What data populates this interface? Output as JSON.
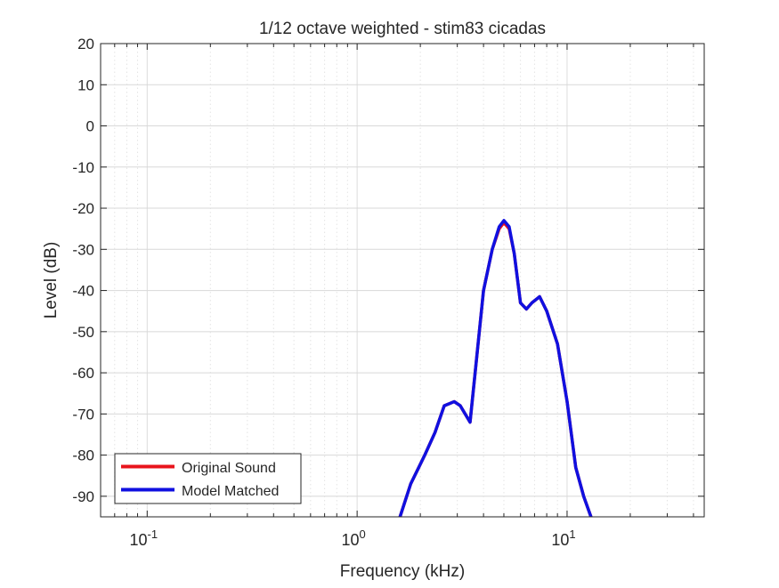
{
  "chart_data": {
    "type": "line",
    "title": "1/12 octave weighted - stim83 cicadas",
    "xlabel": "Frequency (kHz)",
    "ylabel": "Level (dB)",
    "xscale": "log",
    "xlim": [
      0.06,
      45
    ],
    "ylim": [
      -95,
      20
    ],
    "yticks": [
      20,
      10,
      0,
      -10,
      -20,
      -30,
      -40,
      -50,
      -60,
      -70,
      -80,
      -90
    ],
    "xticks": [
      {
        "value": 0.1,
        "base": "10",
        "exp": "-1"
      },
      {
        "value": 1,
        "base": "10",
        "exp": "0"
      },
      {
        "value": 10,
        "base": "10",
        "exp": "1"
      }
    ],
    "grid": true,
    "legend_position": "bottom-left",
    "colors": {
      "original": "#e8141c",
      "model": "#1010e0",
      "grid": "#d8d8d8",
      "axis": "#262626"
    },
    "series": [
      {
        "name": "Original Sound",
        "color": "#e8141c",
        "x": [
          1.6,
          1.8,
          2.1,
          2.35,
          2.6,
          2.9,
          3.1,
          3.45,
          3.7,
          4.0,
          4.4,
          4.75,
          5.0,
          5.3,
          5.6,
          6.0,
          6.4,
          6.8,
          7.4,
          8.0,
          9.0,
          10.0,
          11.0,
          12.0,
          13.0
        ],
        "values": [
          -95,
          -87,
          -80,
          -74.5,
          -68,
          -67,
          -68,
          -72,
          -57,
          -40,
          -30,
          -25,
          -23.5,
          -25,
          -31,
          -43,
          -44.5,
          -43,
          -41.5,
          -45,
          -53,
          -67,
          -83,
          -90,
          -95
        ]
      },
      {
        "name": "Model Matched",
        "color": "#1010e0",
        "x": [
          1.6,
          1.8,
          2.1,
          2.35,
          2.6,
          2.9,
          3.1,
          3.45,
          3.7,
          4.0,
          4.4,
          4.75,
          5.0,
          5.3,
          5.6,
          6.0,
          6.4,
          6.8,
          7.4,
          8.0,
          9.0,
          10.0,
          11.0,
          12.0,
          13.0
        ],
        "values": [
          -95,
          -87,
          -80,
          -74.5,
          -68,
          -67,
          -68,
          -72,
          -57,
          -40,
          -30,
          -24.5,
          -23,
          -24.5,
          -31,
          -43,
          -44.5,
          -43,
          -41.5,
          -45,
          -53,
          -67,
          -83,
          -90,
          -95
        ]
      }
    ]
  }
}
